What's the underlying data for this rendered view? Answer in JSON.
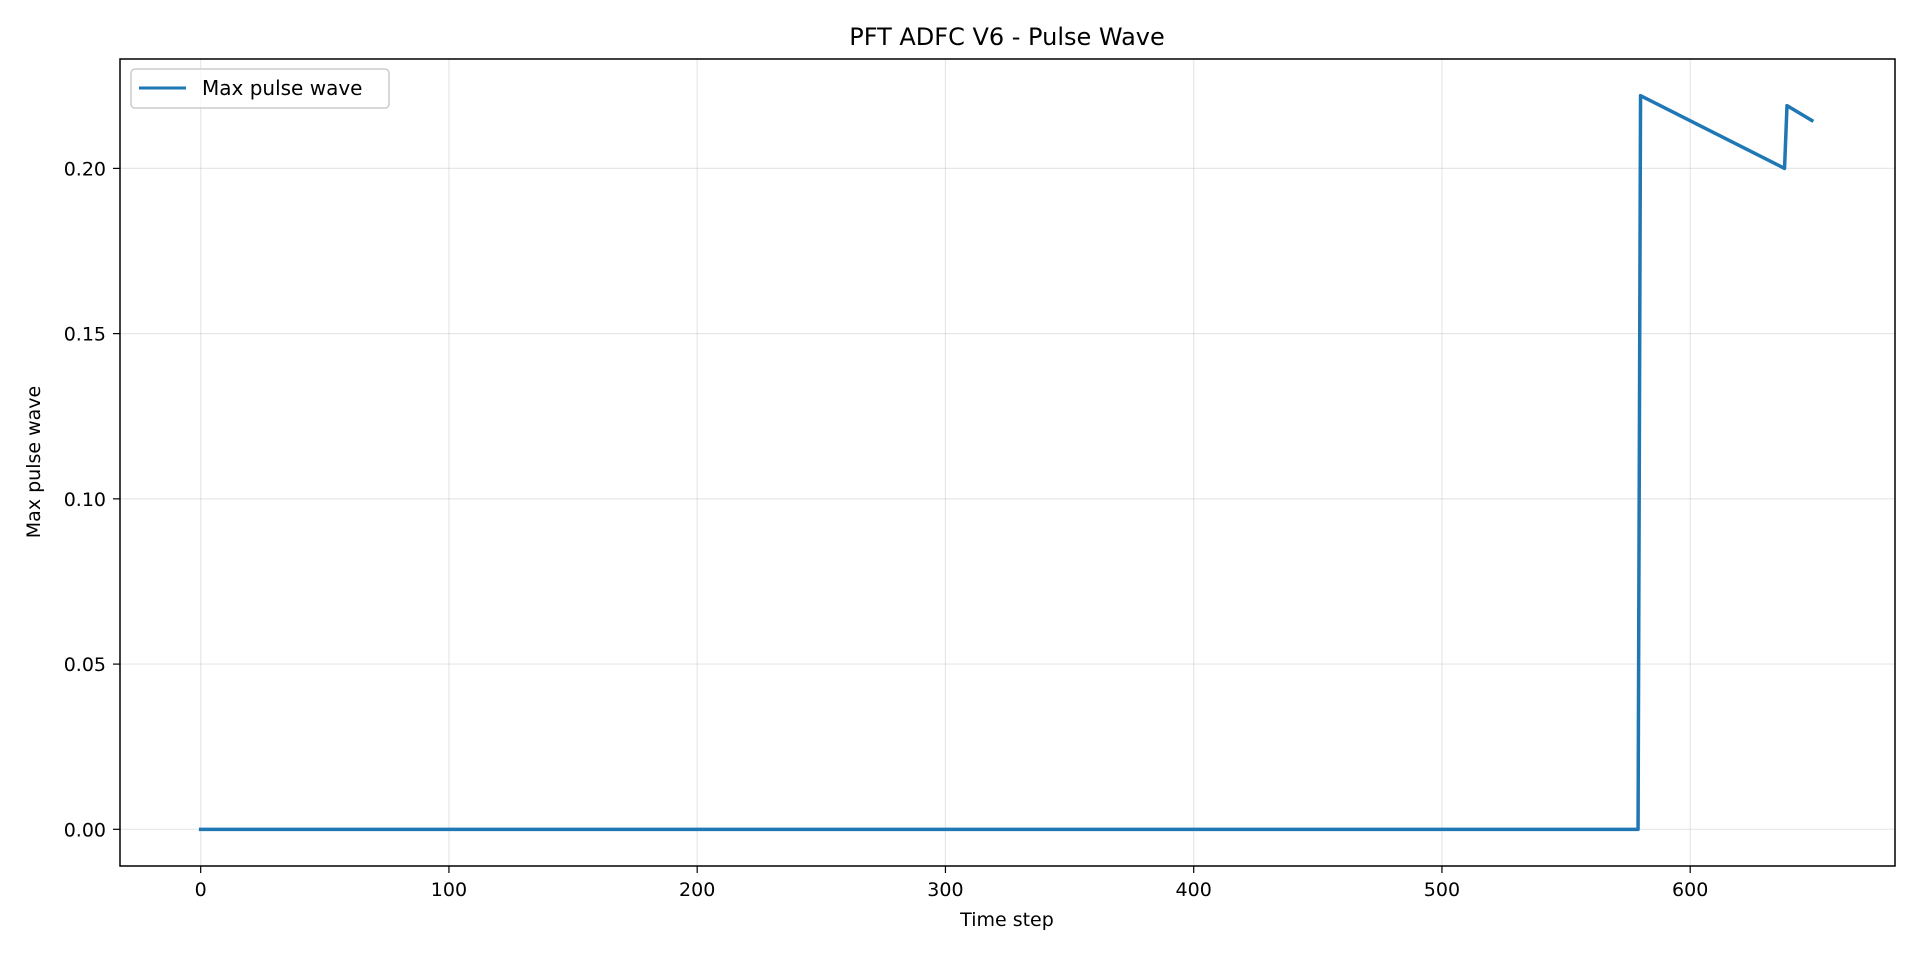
{
  "chart_data": {
    "type": "line",
    "title": "PFT ADFC V6 - Pulse Wave",
    "xlabel": "Time step",
    "ylabel": "Max pulse wave",
    "xlim": [
      -32.5,
      682.5
    ],
    "ylim": [
      -0.0111,
      0.2331
    ],
    "xticks": [
      0,
      100,
      200,
      300,
      400,
      500,
      600
    ],
    "yticks": [
      0.0,
      0.05,
      0.1,
      0.15,
      0.2
    ],
    "xtick_labels": [
      "0",
      "100",
      "200",
      "300",
      "400",
      "500",
      "600"
    ],
    "ytick_labels": [
      "0.00",
      "0.05",
      "0.10",
      "0.15",
      "0.20"
    ],
    "grid": true,
    "legend_position": "upper-left",
    "series": [
      {
        "name": "Max pulse wave",
        "color": "#1f77b4",
        "x": [
          0,
          579,
          580,
          638,
          639,
          649
        ],
        "y": [
          0.0,
          0.0,
          0.222,
          0.2,
          0.219,
          0.2145
        ]
      }
    ]
  }
}
